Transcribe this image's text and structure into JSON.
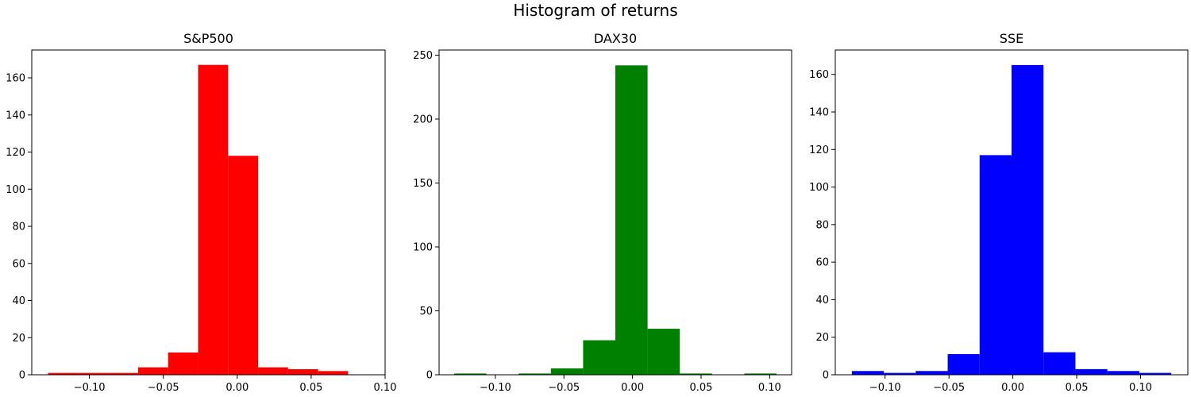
{
  "title": "Histogram of returns",
  "chart_data": [
    {
      "type": "bar",
      "title": "S&P500",
      "color": "#ff0000",
      "bin_edges": [
        -0.128,
        -0.1077,
        -0.0874,
        -0.0671,
        -0.0468,
        -0.0265,
        -0.0062,
        0.0141,
        0.0344,
        0.0547,
        0.075
      ],
      "values": [
        1,
        1,
        1,
        4,
        12,
        167,
        118,
        4,
        3,
        2
      ],
      "xlim": [
        -0.139,
        0.1
      ],
      "ylim": [
        0,
        175
      ],
      "xticks": [
        -0.1,
        -0.05,
        0.0,
        0.05,
        0.1
      ],
      "xtick_labels": [
        "−0.10",
        "−0.05",
        "0.00",
        "0.05",
        "0.10"
      ],
      "yticks": [
        0,
        20,
        40,
        60,
        80,
        100,
        120,
        140,
        160
      ],
      "ytick_labels": [
        "0",
        "20",
        "40",
        "60",
        "80",
        "100",
        "120",
        "140",
        "160"
      ],
      "xlabel": "",
      "ylabel": ""
    },
    {
      "type": "bar",
      "title": "DAX30",
      "color": "#008000",
      "bin_edges": [
        -0.13,
        -0.1065,
        -0.083,
        -0.0595,
        -0.036,
        -0.0125,
        0.011,
        0.0345,
        0.058,
        0.0815,
        0.105
      ],
      "values": [
        1,
        0,
        1,
        5,
        27,
        242,
        36,
        1,
        0,
        1
      ],
      "xlim": [
        -0.141,
        0.116
      ],
      "ylim": [
        0,
        254
      ],
      "xticks": [
        -0.1,
        -0.05,
        0.0,
        0.05,
        0.1
      ],
      "xtick_labels": [
        "−0.10",
        "−0.05",
        "0.00",
        "0.05",
        "0.10"
      ],
      "yticks": [
        0,
        50,
        100,
        150,
        200,
        250
      ],
      "ytick_labels": [
        "0",
        "50",
        "100",
        "150",
        "200",
        "250"
      ],
      "xlabel": "",
      "ylabel": ""
    },
    {
      "type": "bar",
      "title": "SSE",
      "color": "#0000ff",
      "bin_edges": [
        -0.126,
        -0.101,
        -0.076,
        -0.051,
        -0.026,
        -0.001,
        0.024,
        0.049,
        0.074,
        0.099,
        0.124
      ],
      "values": [
        2,
        1,
        2,
        11,
        117,
        165,
        12,
        3,
        2,
        1
      ],
      "xlim": [
        -0.139,
        0.137
      ],
      "ylim": [
        0,
        173
      ],
      "xticks": [
        -0.1,
        -0.05,
        0.0,
        0.05,
        0.1
      ],
      "xtick_labels": [
        "−0.10",
        "−0.05",
        "0.00",
        "0.05",
        "0.10"
      ],
      "yticks": [
        0,
        20,
        40,
        60,
        80,
        100,
        120,
        140,
        160
      ],
      "ytick_labels": [
        "0",
        "20",
        "40",
        "60",
        "80",
        "100",
        "120",
        "140",
        "160"
      ],
      "xlabel": "",
      "ylabel": ""
    }
  ]
}
